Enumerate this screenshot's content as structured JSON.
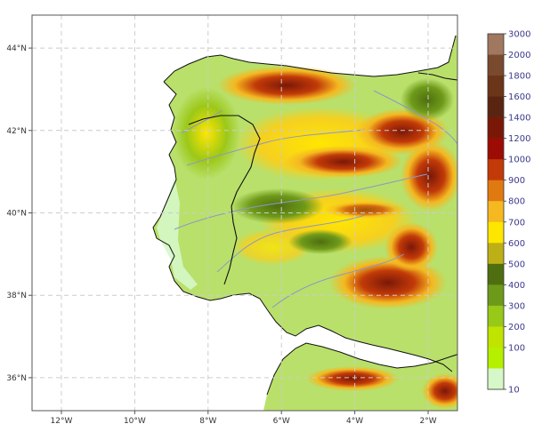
{
  "map": {
    "latitude_ticks": [
      "44°N",
      "42°N",
      "40°N",
      "38°N",
      "36°N"
    ],
    "longitude_ticks": [
      "12°W",
      "10°W",
      "8°W",
      "6°W",
      "4°W",
      "2°W"
    ],
    "extent_lon": [
      -12.8,
      -1.2
    ],
    "extent_lat": [
      35.2,
      44.8
    ]
  },
  "colorbar": {
    "levels": [
      "3000",
      "2000",
      "1800",
      "1600",
      "1400",
      "1200",
      "1000",
      "900",
      "800",
      "700",
      "600",
      "500",
      "400",
      "300",
      "200",
      "100",
      "10"
    ],
    "colors": [
      "#a07860",
      "#7a4a2e",
      "#6b3519",
      "#5a2510",
      "#7a1808",
      "#9c0c04",
      "#c23a08",
      "#e07a10",
      "#f5b820",
      "#ffe600",
      "#bdb016",
      "#4f6e10",
      "#6e9a1a",
      "#98c818",
      "#c0e400",
      "#b4f000",
      "#d6f7c8"
    ]
  },
  "palette": {
    "sea": "#ffffff",
    "lowland": "#b9e06a",
    "border": "#111111",
    "river": "#8c97c8",
    "grid": "#cccccc"
  }
}
